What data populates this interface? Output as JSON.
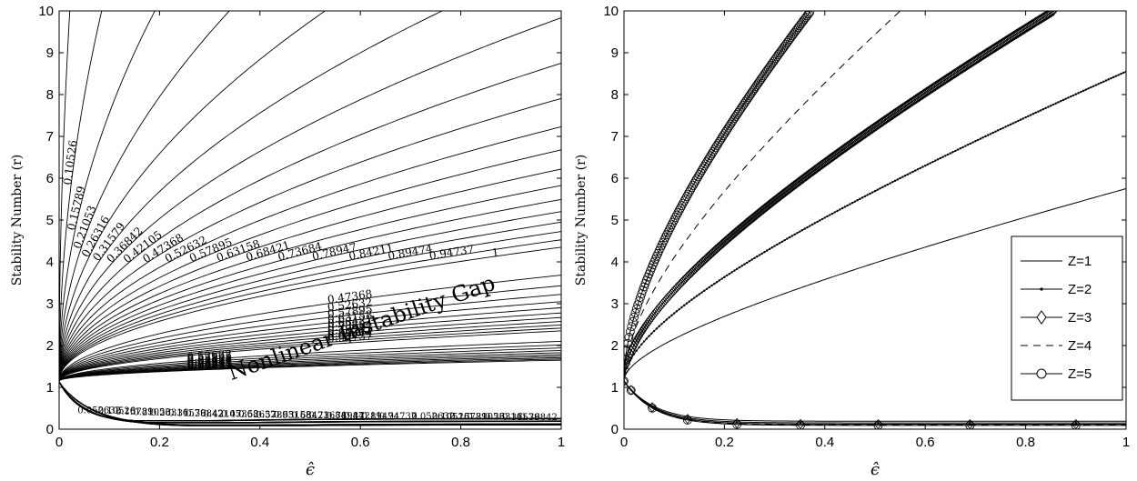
{
  "chart_data": [
    {
      "type": "line",
      "title": "",
      "xlabel": "ϵ̂",
      "ylabel": "Stability Number (r)",
      "xlim": [
        0,
        1
      ],
      "ylim": [
        0,
        10
      ],
      "xticks": [
        "0",
        "0.2",
        "0.4",
        "0.6",
        "0.8",
        "1"
      ],
      "yticks": [
        "0",
        "1",
        "2",
        "3",
        "4",
        "5",
        "6",
        "7",
        "8",
        "9",
        "10"
      ],
      "annotation": "Nonlinear Instability Gap",
      "contour_levels": [
        "0.052632",
        "0.10526",
        "0.15789",
        "0.21053",
        "0.26316",
        "0.31579",
        "0.36842",
        "0.42105",
        "0.47368",
        "0.52632",
        "0.57895",
        "0.63158",
        "0.68421",
        "0.73684",
        "0.78947",
        "0.84211",
        "0.89474",
        "0.94737",
        "1"
      ],
      "families": [
        {
          "slope": 3.2,
          "levels": [
            0.052632,
            0.10526,
            0.15789,
            0.21053,
            0.26316,
            0.31579,
            0.36842,
            0.42105,
            0.47368,
            0.52632,
            0.57895,
            0.63158,
            0.68421,
            0.73684,
            0.78947,
            0.84211,
            0.89474,
            0.94737,
            1
          ],
          "lower_decay": 0.5,
          "lower_tail": 0.13
        },
        {
          "slope": 1.2,
          "levels": [
            0.47368,
            0.52632,
            0.57895,
            0.63158,
            0.68421,
            0.73684,
            0.78947,
            0.84211,
            0.89474,
            0.94737,
            1
          ],
          "lower_decay": 0.3,
          "lower_tail": 0.2
        },
        {
          "slope": 0.5,
          "levels": [
            0.52632,
            0.57895,
            0.63158,
            0.68421,
            0.73684,
            0.78947,
            0.84211,
            0.89474,
            0.94737,
            1
          ],
          "lower_decay": 0.2,
          "lower_tail": 0.26
        }
      ],
      "grid": false
    },
    {
      "type": "line",
      "title": "",
      "xlabel": "ϵ̂",
      "ylabel": "Stability Number (r)",
      "xlim": [
        0,
        1
      ],
      "ylim": [
        0,
        10
      ],
      "xticks": [
        "0",
        "0.2",
        "0.4",
        "0.6",
        "0.8",
        "1"
      ],
      "yticks": [
        "0",
        "1",
        "2",
        "3",
        "4",
        "5",
        "6",
        "7",
        "8",
        "9",
        "10"
      ],
      "legend_position": "right-middle",
      "series": [
        {
          "name": "Z=1",
          "slope": 4.6,
          "marker": "none",
          "dash": "solid",
          "lower_tail": 0.19
        },
        {
          "name": "Z=2",
          "slope": 7.4,
          "marker": "dot",
          "dash": "solid",
          "lower_tail": 0.15
        },
        {
          "name": "Z=3",
          "slope": 9.9,
          "marker": "diamond",
          "dash": "solid",
          "lower_tail": 0.12
        },
        {
          "name": "Z=4",
          "slope": 13.5,
          "marker": "none",
          "dash": "dashed",
          "lower_tail": 0.1
        },
        {
          "name": "Z=5",
          "slope": 17.6,
          "marker": "circle",
          "dash": "solid",
          "lower_tail": 0.09
        }
      ],
      "grid": false
    }
  ]
}
